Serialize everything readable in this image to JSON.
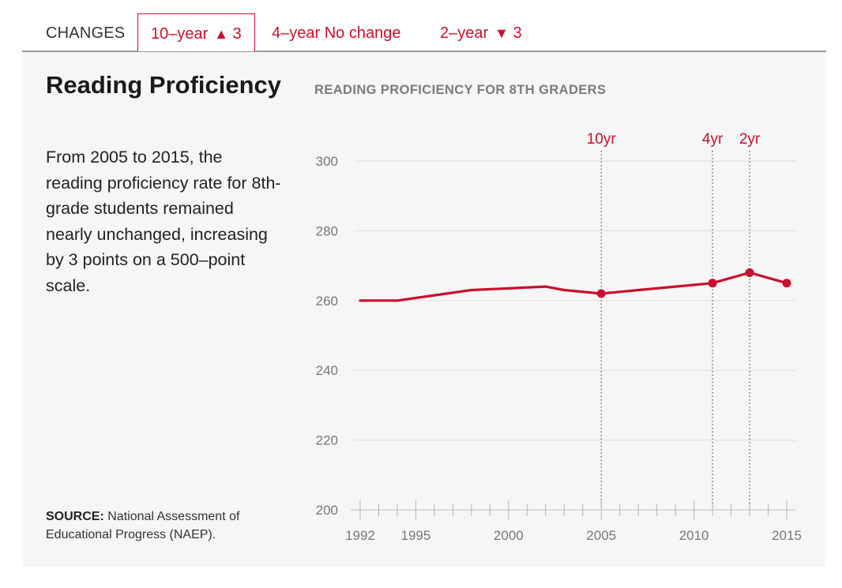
{
  "tabs": {
    "lead": "CHANGES",
    "items": [
      {
        "label": "10–year",
        "mark": "▲",
        "value": "3",
        "active": true
      },
      {
        "label": "4–year No change",
        "mark": "",
        "value": "",
        "active": false
      },
      {
        "label": "2–year",
        "mark": "▼",
        "value": "3",
        "active": false
      }
    ]
  },
  "panel": {
    "headline": "Reading Proficiency",
    "description": "From 2005 to 2015, the reading proficiency rate for 8th-grade students remained nearly unchanged, increasing by 3 points on a 500–point scale.",
    "source_label": "SOURCE:",
    "source_text": "National Assessment of Educational Progress (NAEP)."
  },
  "colors": {
    "accent": "#c8102e",
    "panel_bg": "#f5f6f5",
    "grid": "#dddddd",
    "axis_text": "#777777"
  },
  "chart_data": {
    "type": "line",
    "title": "READING PROFICIENCY FOR 8TH GRADERS",
    "xlabel": "",
    "ylabel": "",
    "xlim": [
      1992,
      2015
    ],
    "ylim": [
      200,
      300
    ],
    "yticks": [
      200,
      220,
      240,
      260,
      280,
      300
    ],
    "xtick_labels": [
      1992,
      1995,
      2000,
      2005,
      2010,
      2015
    ],
    "minor_x_ticks": [
      1992,
      1993,
      1994,
      1995,
      1996,
      1997,
      1998,
      1999,
      2000,
      2001,
      2002,
      2003,
      2004,
      2005,
      2006,
      2007,
      2008,
      2009,
      2010,
      2011,
      2012,
      2013,
      2014,
      2015
    ],
    "grid": true,
    "series": [
      {
        "x": [
          1992,
          1994,
          1998,
          2002,
          2003,
          2005,
          2007,
          2009,
          2011,
          2013,
          2015
        ],
        "y": [
          260,
          260,
          263,
          264,
          263,
          262,
          263,
          264,
          265,
          268,
          265
        ]
      }
    ],
    "highlight_points": [
      2005,
      2011,
      2013,
      2015
    ],
    "reference_lines": [
      {
        "x": 2005,
        "label": "10yr"
      },
      {
        "x": 2011,
        "label": "4yr"
      },
      {
        "x": 2013,
        "label": "2yr"
      }
    ]
  }
}
